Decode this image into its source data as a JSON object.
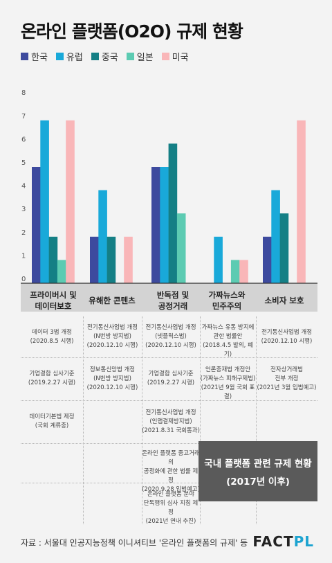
{
  "title": "온라인 플랫폼(O2O) 규제 현황",
  "chart_data": {
    "type": "bar",
    "categories": [
      [
        "프라이버시 및",
        "데이터보호"
      ],
      [
        "유해한 콘텐츠"
      ],
      [
        "반독점 및",
        "공정거래"
      ],
      [
        "가짜뉴스와",
        "민주주의"
      ],
      [
        "소비자 보호"
      ]
    ],
    "series": [
      {
        "name": "한국",
        "color": "#3d4a9e",
        "values": [
          5,
          2,
          5,
          0,
          2
        ]
      },
      {
        "name": "유럽",
        "color": "#19a9d9",
        "values": [
          7,
          4,
          5,
          2,
          4
        ]
      },
      {
        "name": "중국",
        "color": "#147f85",
        "values": [
          2,
          2,
          6,
          0,
          3
        ]
      },
      {
        "name": "일본",
        "color": "#5ccbb2",
        "values": [
          1,
          0,
          3,
          1,
          0
        ]
      },
      {
        "name": "미국",
        "color": "#f9b6b8",
        "values": [
          7,
          2,
          0,
          1,
          7
        ]
      }
    ],
    "yticks": [
      0,
      1,
      2,
      3,
      4,
      5,
      6,
      7,
      8
    ],
    "ylim": [
      0,
      8
    ],
    "grid": false,
    "legend_position": "top-left"
  },
  "table": {
    "rows": [
      [
        "데이터 3법 개정\n(2020.8.5 시행)",
        "전기통신사업법 개정\n(N번방 방지법)\n(2020.12.10 시행)",
        "전기통신사업법 개정\n(넷플릭스법)\n(2020.12.10 시행)",
        "가짜뉴스 유통 방지에\n관한 법률안\n(2018.4.5 발의, 폐기)",
        "전기통신사업법 개정\n(2020.12.10 시행)"
      ],
      [
        "기업결합 심사기준\n(2019.2.27 시행)",
        "정보통신망법 개정\n(N번방 방지법)\n(2020.12.10 시행)",
        "기업결합 심사기준\n(2019.2.27 시행)",
        "언론중재법 개정안\n(가짜뉴스 피해구제법)\n(2021년 9월 국회 표결)",
        "전자상거래법\n전부 개정\n(2021년 3월 입법예고)"
      ],
      [
        "데이터기본법 제정\n(국회 계류중)",
        "",
        "전기통신사업법 개정\n(인앱결제방지법)\n(2021.8.31 국회통과)",
        "",
        ""
      ],
      [
        "",
        "",
        "온라인 플랫폼 중고거래의\n공정화에 관한 법률 제정\n(2020.9.28 입법예고)",
        "",
        ""
      ],
      [
        "",
        "",
        "온라인 플랫폼 분야\n단독행위 심사 지침 제정\n(2021년 연내 추진)",
        "",
        ""
      ]
    ]
  },
  "highlight": {
    "line1": "국내 플랫폼 관련 규제 현황",
    "line2": "(2017년 이후)"
  },
  "footer": {
    "source": "자료 : 서울대 인공지능정책 이니셔티브 '온라인 플랫폼의 규제' 등",
    "logo_main": "FACT",
    "logo_accent": "PL"
  }
}
